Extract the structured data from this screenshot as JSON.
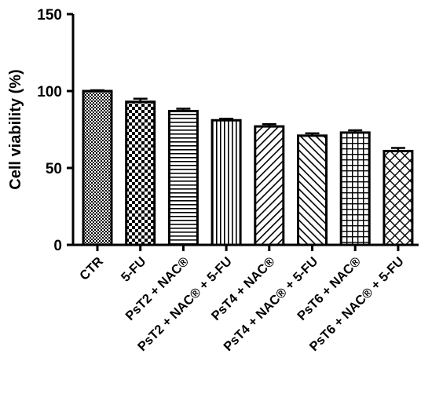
{
  "chart_data": {
    "type": "bar",
    "title": "",
    "xlabel": "",
    "ylabel": "Cell viability (%)",
    "ylim": [
      0,
      150
    ],
    "yticks": [
      0,
      50,
      100,
      150
    ],
    "grid": false,
    "error_bars": true,
    "categories": [
      "CTR",
      "5-FU",
      "PsT2 + NAC®",
      "PsT2 + NAC® + 5-FU",
      "PsT4 + NAC®",
      "PsT4 + NAC® + 5-FU",
      "PsT6 + NAC®",
      "PsT6 + NAC® + 5-FU"
    ],
    "values": [
      100,
      93,
      87,
      81,
      77,
      71,
      73,
      61
    ],
    "errors": [
      0.5,
      2,
      1.5,
      1,
      1.5,
      1.5,
      1.5,
      2
    ],
    "patterns": [
      "small-checker",
      "large-checker",
      "horizontal-lines",
      "vertical-lines",
      "diagonal-right",
      "diagonal-left",
      "grid",
      "diamond-lattice"
    ],
    "colors": {
      "bar_fill": "#ffffff",
      "bar_stroke": "#000000",
      "axis": "#000000"
    }
  }
}
